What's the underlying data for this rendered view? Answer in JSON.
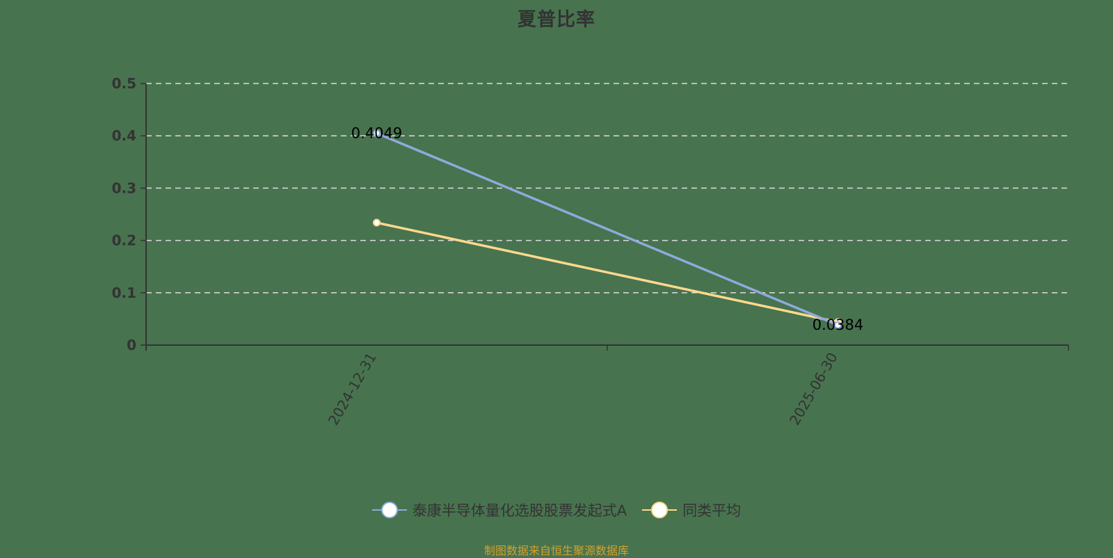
{
  "title": "夏普比率",
  "source": "制图数据来自恒生聚源数据库",
  "legend": [
    {
      "label": "泰康半导体量化选股股票发起式A",
      "color": "#8faadc"
    },
    {
      "label": "同类平均",
      "color": "#ffd98e"
    }
  ],
  "chart_data": {
    "type": "line",
    "title": "夏普比率",
    "categories": [
      "2024-12-31",
      "2025-06-30"
    ],
    "series": [
      {
        "name": "泰康半导体量化选股股票发起式A",
        "color": "#8faadc",
        "values": [
          0.4049,
          0.0384
        ],
        "labels": [
          "0.4049",
          "0.0384"
        ]
      },
      {
        "name": "同类平均",
        "color": "#ffd98e",
        "values": [
          0.234,
          0.044
        ]
      }
    ],
    "xlabel": "",
    "ylabel": "",
    "ylim": [
      0,
      0.5
    ],
    "yticks": [
      "0",
      "0.1",
      "0.2",
      "0.3",
      "0.4",
      "0.5"
    ],
    "grid": true,
    "legend_position": "bottom"
  }
}
